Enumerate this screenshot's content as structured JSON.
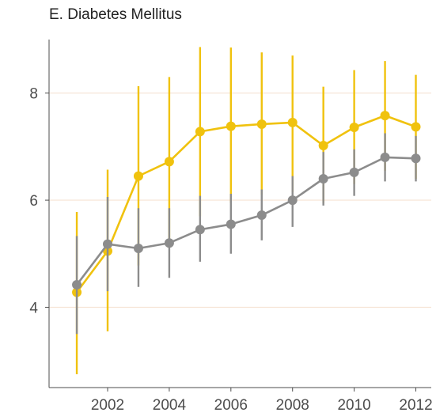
{
  "chart_data": {
    "type": "line",
    "title": "E. Diabetes Mellitus",
    "xlabel": "",
    "ylabel": "",
    "x": [
      2001,
      2002,
      2003,
      2004,
      2005,
      2006,
      2007,
      2008,
      2009,
      2010,
      2011,
      2012
    ],
    "x_ticks": [
      "2002",
      "2004",
      "2006",
      "2008",
      "2010",
      "2012"
    ],
    "y_ticks": [
      "4",
      "6",
      "8"
    ],
    "xlim": [
      2000.1,
      2012.5
    ],
    "ylim": [
      2.5,
      9.0
    ],
    "grid": "horizontal major lines",
    "series": [
      {
        "color": "#f0c20e",
        "values": [
          4.28,
          5.05,
          6.45,
          6.72,
          7.28,
          7.38,
          7.42,
          7.45,
          7.02,
          7.36,
          7.58,
          7.37
        ],
        "lower": [
          2.75,
          3.55,
          4.78,
          5.12,
          5.7,
          5.95,
          6.1,
          6.15,
          5.95,
          6.3,
          6.55,
          6.4
        ],
        "upper": [
          5.78,
          6.57,
          8.13,
          8.3,
          8.86,
          8.85,
          8.76,
          8.7,
          8.12,
          8.43,
          8.6,
          8.34
        ]
      },
      {
        "color": "#8c8c8c",
        "values": [
          4.42,
          5.18,
          5.1,
          5.2,
          5.45,
          5.55,
          5.72,
          6.0,
          6.4,
          6.52,
          6.8,
          6.78
        ],
        "lower": [
          3.5,
          4.3,
          4.38,
          4.55,
          4.85,
          5.0,
          5.25,
          5.5,
          5.9,
          6.08,
          6.35,
          6.35
        ],
        "upper": [
          5.33,
          6.06,
          5.85,
          5.85,
          6.08,
          6.12,
          6.2,
          6.45,
          6.9,
          6.95,
          7.25,
          7.2
        ]
      }
    ]
  }
}
